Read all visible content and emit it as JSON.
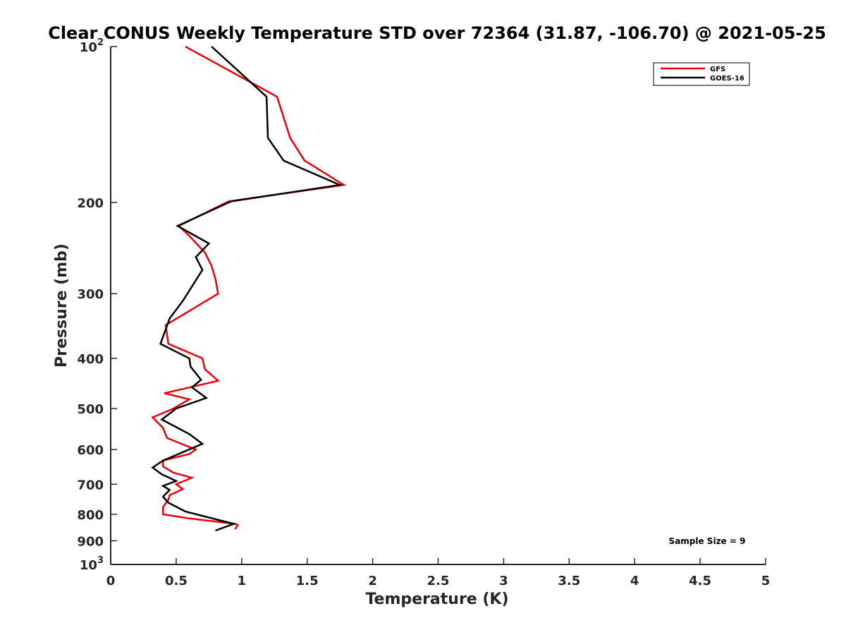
{
  "chart_data": {
    "type": "line",
    "title": "Clear CONUS Weekly Temperature STD over 72364 (31.87, -106.70) @ 2021-05-25",
    "xlabel": "Temperature (K)",
    "ylabel": "Pressure (mb)",
    "xlim": [
      0,
      5
    ],
    "ylim": [
      100,
      1000
    ],
    "y_scale": "log",
    "y_reversed": true,
    "grid": false,
    "legend_position": "top-right",
    "x_ticks": [
      0,
      0.5,
      1,
      1.5,
      2,
      2.5,
      3,
      3.5,
      4,
      4.5,
      5
    ],
    "x_tick_labels": [
      "0",
      "0.5",
      "1",
      "1.5",
      "2",
      "2.5",
      "3",
      "3.5",
      "4",
      "4.5",
      "5"
    ],
    "y_ticks": [
      100,
      200,
      300,
      400,
      500,
      600,
      700,
      800,
      900,
      1000
    ],
    "y_tick_labels": [
      {
        "base": "10",
        "exp": "2"
      },
      {
        "base": "200",
        "exp": ""
      },
      {
        "base": "300",
        "exp": ""
      },
      {
        "base": "400",
        "exp": ""
      },
      {
        "base": "500",
        "exp": ""
      },
      {
        "base": "600",
        "exp": ""
      },
      {
        "base": "700",
        "exp": ""
      },
      {
        "base": "800",
        "exp": ""
      },
      {
        "base": "900",
        "exp": ""
      },
      {
        "base": "10",
        "exp": "3"
      }
    ],
    "annotation": "Sample Size = 9",
    "series": [
      {
        "name": "GFS",
        "color": "#e8000b",
        "points": [
          [
            0.57,
            100
          ],
          [
            1.27,
            125
          ],
          [
            1.37,
            150
          ],
          [
            1.48,
            166
          ],
          [
            1.78,
            185
          ],
          [
            0.9,
            199
          ],
          [
            0.52,
            222
          ],
          [
            0.6,
            232
          ],
          [
            0.72,
            250
          ],
          [
            0.77,
            265
          ],
          [
            0.8,
            281
          ],
          [
            0.82,
            300
          ],
          [
            0.42,
            345
          ],
          [
            0.44,
            375
          ],
          [
            0.7,
            400
          ],
          [
            0.72,
            420
          ],
          [
            0.82,
            442
          ],
          [
            0.41,
            467
          ],
          [
            0.6,
            480
          ],
          [
            0.48,
            500
          ],
          [
            0.32,
            520
          ],
          [
            0.4,
            545
          ],
          [
            0.43,
            570
          ],
          [
            0.65,
            600
          ],
          [
            0.6,
            612
          ],
          [
            0.4,
            630
          ],
          [
            0.4,
            647
          ],
          [
            0.48,
            665
          ],
          [
            0.62,
            680
          ],
          [
            0.5,
            700
          ],
          [
            0.55,
            715
          ],
          [
            0.45,
            735
          ],
          [
            0.44,
            750
          ],
          [
            0.4,
            775
          ],
          [
            0.4,
            800
          ],
          [
            0.6,
            815
          ],
          [
            0.95,
            835
          ],
          [
            0.97,
            840
          ],
          [
            0.95,
            855
          ]
        ]
      },
      {
        "name": "GOES-16",
        "color": "#000000",
        "points": [
          [
            0.77,
            100
          ],
          [
            1.19,
            125
          ],
          [
            1.2,
            150
          ],
          [
            1.32,
            166
          ],
          [
            1.75,
            185
          ],
          [
            0.92,
            199
          ],
          [
            0.51,
            222
          ],
          [
            0.75,
            240
          ],
          [
            0.65,
            255
          ],
          [
            0.7,
            270
          ],
          [
            0.55,
            310
          ],
          [
            0.45,
            335
          ],
          [
            0.38,
            375
          ],
          [
            0.6,
            400
          ],
          [
            0.61,
            415
          ],
          [
            0.69,
            440
          ],
          [
            0.62,
            455
          ],
          [
            0.73,
            477
          ],
          [
            0.5,
            500
          ],
          [
            0.39,
            525
          ],
          [
            0.6,
            560
          ],
          [
            0.7,
            585
          ],
          [
            0.4,
            630
          ],
          [
            0.32,
            650
          ],
          [
            0.39,
            670
          ],
          [
            0.5,
            690
          ],
          [
            0.4,
            705
          ],
          [
            0.45,
            718
          ],
          [
            0.4,
            740
          ],
          [
            0.44,
            760
          ],
          [
            0.57,
            790
          ],
          [
            0.94,
            835
          ],
          [
            0.8,
            860
          ]
        ]
      }
    ]
  }
}
